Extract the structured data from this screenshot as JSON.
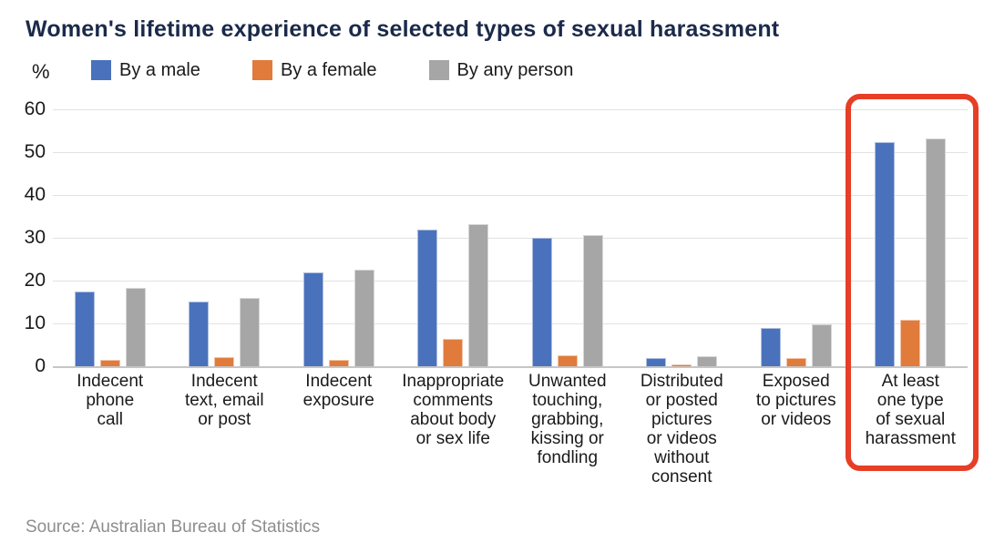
{
  "header": {
    "title": "Women's lifetime experience of selected types of sexual harassment"
  },
  "source": {
    "text": "Source: Australian Bureau of Statistics"
  },
  "chart_data": {
    "type": "bar",
    "title": "Women's lifetime experience of selected types of sexual harassment",
    "unit_label": "%",
    "xlabel": "",
    "ylabel": "%",
    "ylim": [
      0,
      60
    ],
    "y_ticks": [
      0,
      10,
      20,
      30,
      40,
      50,
      60
    ],
    "grid": true,
    "legend_position": "top",
    "categories": [
      "Indecent\nphone\ncall",
      "Indecent\ntext, email\nor post",
      "Indecent\nexposure",
      "Inappropriate\ncomments\nabout body\nor sex life",
      "Unwanted\ntouching,\ngrabbing,\nkissing or\nfondling",
      "Distributed\nor posted\npictures\nor videos\nwithout\nconsent",
      "Exposed\nto pictures\nor videos",
      "At least\none type\nof sexual\nharassment"
    ],
    "series": [
      {
        "name": "By a male",
        "color": "#4a72bc",
        "values": [
          17.5,
          15.1,
          22.0,
          32.0,
          30.0,
          2.0,
          8.9,
          52.4
        ]
      },
      {
        "name": "By a female",
        "color": "#e07b3b",
        "values": [
          1.5,
          2.2,
          1.4,
          6.3,
          2.5,
          0.4,
          1.9,
          10.8
        ]
      },
      {
        "name": "By any person",
        "color": "#a6a6a6",
        "values": [
          18.2,
          15.9,
          22.5,
          33.2,
          30.6,
          2.3,
          9.7,
          53.2
        ]
      }
    ],
    "highlight": {
      "category_index": 7,
      "label": "At least one type of sexual harassment",
      "color": "#e73e26"
    }
  }
}
